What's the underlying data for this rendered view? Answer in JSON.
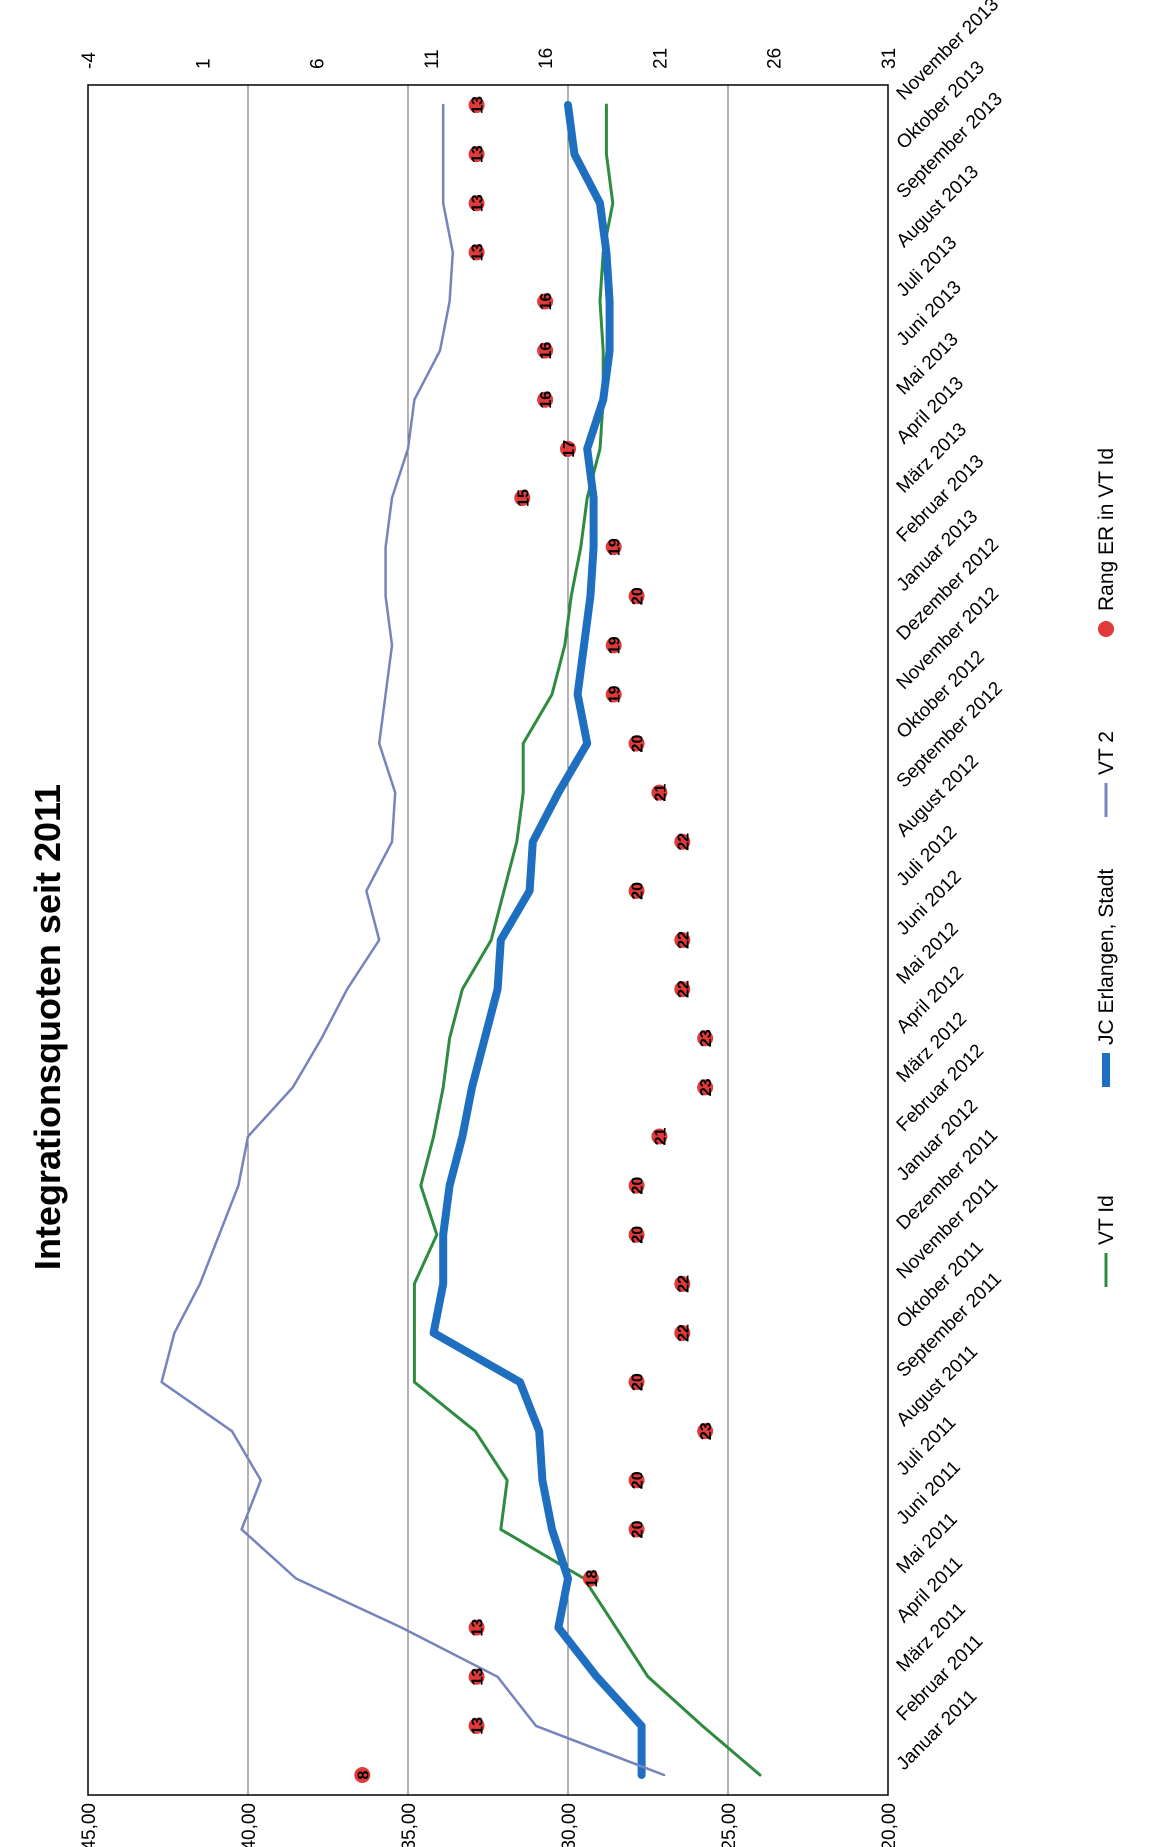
{
  "chart_data": {
    "type": "line",
    "title": "Integrationsquoten seit 2011",
    "categories": [
      "Januar 2011",
      "Februar 2011",
      "März 2011",
      "April 2011",
      "Mai 2011",
      "Juni 2011",
      "Juli 2011",
      "August 2011",
      "September 2011",
      "Oktober 2011",
      "November 2011",
      "Dezember 2011",
      "Januar 2012",
      "Februar 2012",
      "März 2012",
      "April 2012",
      "Mai 2012",
      "Juni 2012",
      "Juli 2012",
      "August 2012",
      "September 2012",
      "Oktober 2012",
      "November 2012",
      "Dezember 2012",
      "Januar 2013",
      "Februar 2013",
      "März 2013",
      "April 2013",
      "Mai 2013",
      "Juni 2013",
      "Juli 2013",
      "August 2013",
      "September 2013",
      "Oktober 2013",
      "November 2013"
    ],
    "y_axis": {
      "ticks": [
        "20,00",
        "25,00",
        "30,00",
        "35,00",
        "40,00",
        "45,00"
      ],
      "min": 20,
      "max": 45
    },
    "y2_axis": {
      "ticks": [
        "-4",
        "1",
        "6",
        "11",
        "16",
        "21",
        "26",
        "31"
      ],
      "min": -4,
      "max": 31,
      "inverted": true
    },
    "grid": true,
    "legend_position": "bottom",
    "series": [
      {
        "name": "VT Id",
        "axis": "primary",
        "color": "#2e8b40",
        "width": 3,
        "values": [
          24.0,
          25.8,
          27.5,
          28.5,
          29.5,
          32.1,
          31.9,
          32.9,
          34.8,
          34.8,
          34.8,
          34.1,
          34.6,
          34.2,
          33.9,
          33.7,
          33.3,
          32.4,
          32.0,
          31.6,
          31.4,
          31.4,
          30.5,
          30.1,
          29.9,
          29.6,
          29.4,
          29.0,
          28.9,
          28.9,
          29.0,
          28.9,
          28.6,
          28.8,
          28.8
        ]
      },
      {
        "name": "JC Erlangen, Stadt",
        "axis": "primary",
        "color": "#1f6fc0",
        "width": 8,
        "values": [
          27.7,
          27.7,
          29.1,
          30.3,
          30.0,
          30.5,
          30.8,
          30.9,
          31.5,
          34.2,
          33.9,
          33.9,
          33.7,
          33.3,
          33.0,
          32.6,
          32.2,
          32.1,
          31.2,
          31.1,
          30.3,
          29.4,
          29.7,
          29.5,
          29.3,
          29.2,
          29.2,
          29.4,
          28.9,
          28.7,
          28.7,
          28.8,
          29.0,
          29.8,
          30.0
        ]
      },
      {
        "name": "VT 2",
        "axis": "primary",
        "color": "#7783bd",
        "width": 2.5,
        "values": [
          27.0,
          31.0,
          32.2,
          35.2,
          38.5,
          40.2,
          39.6,
          40.5,
          42.7,
          42.3,
          41.5,
          40.9,
          40.3,
          40.0,
          38.6,
          37.7,
          36.9,
          35.9,
          36.3,
          35.5,
          35.4,
          35.9,
          35.7,
          35.5,
          35.7,
          35.7,
          35.5,
          35.0,
          34.8,
          34.0,
          33.7,
          33.6,
          33.9,
          33.9,
          33.9
        ]
      },
      {
        "name": "Rang ER in VT Id",
        "axis": "secondary",
        "color": "#e03a3a",
        "marker": "circle",
        "values": [
          8,
          13,
          13,
          13,
          18,
          20,
          20,
          23,
          20,
          22,
          22,
          20,
          20,
          21,
          23,
          23,
          22,
          22,
          20,
          22,
          21,
          20,
          19,
          19,
          20,
          19,
          15,
          17,
          16,
          16,
          16,
          13,
          13,
          13,
          13
        ],
        "labels": [
          "8",
          "13",
          "13",
          "13",
          "18",
          "20",
          "20",
          "23",
          "20",
          "22",
          "22",
          "20",
          "20",
          "21",
          "23",
          "23",
          "22",
          "22",
          "20",
          "22",
          "21",
          "20",
          "19",
          "19",
          "20",
          "19",
          "15",
          "17",
          "16",
          "16",
          "16",
          "13",
          "13",
          "13",
          "13"
        ]
      }
    ]
  }
}
